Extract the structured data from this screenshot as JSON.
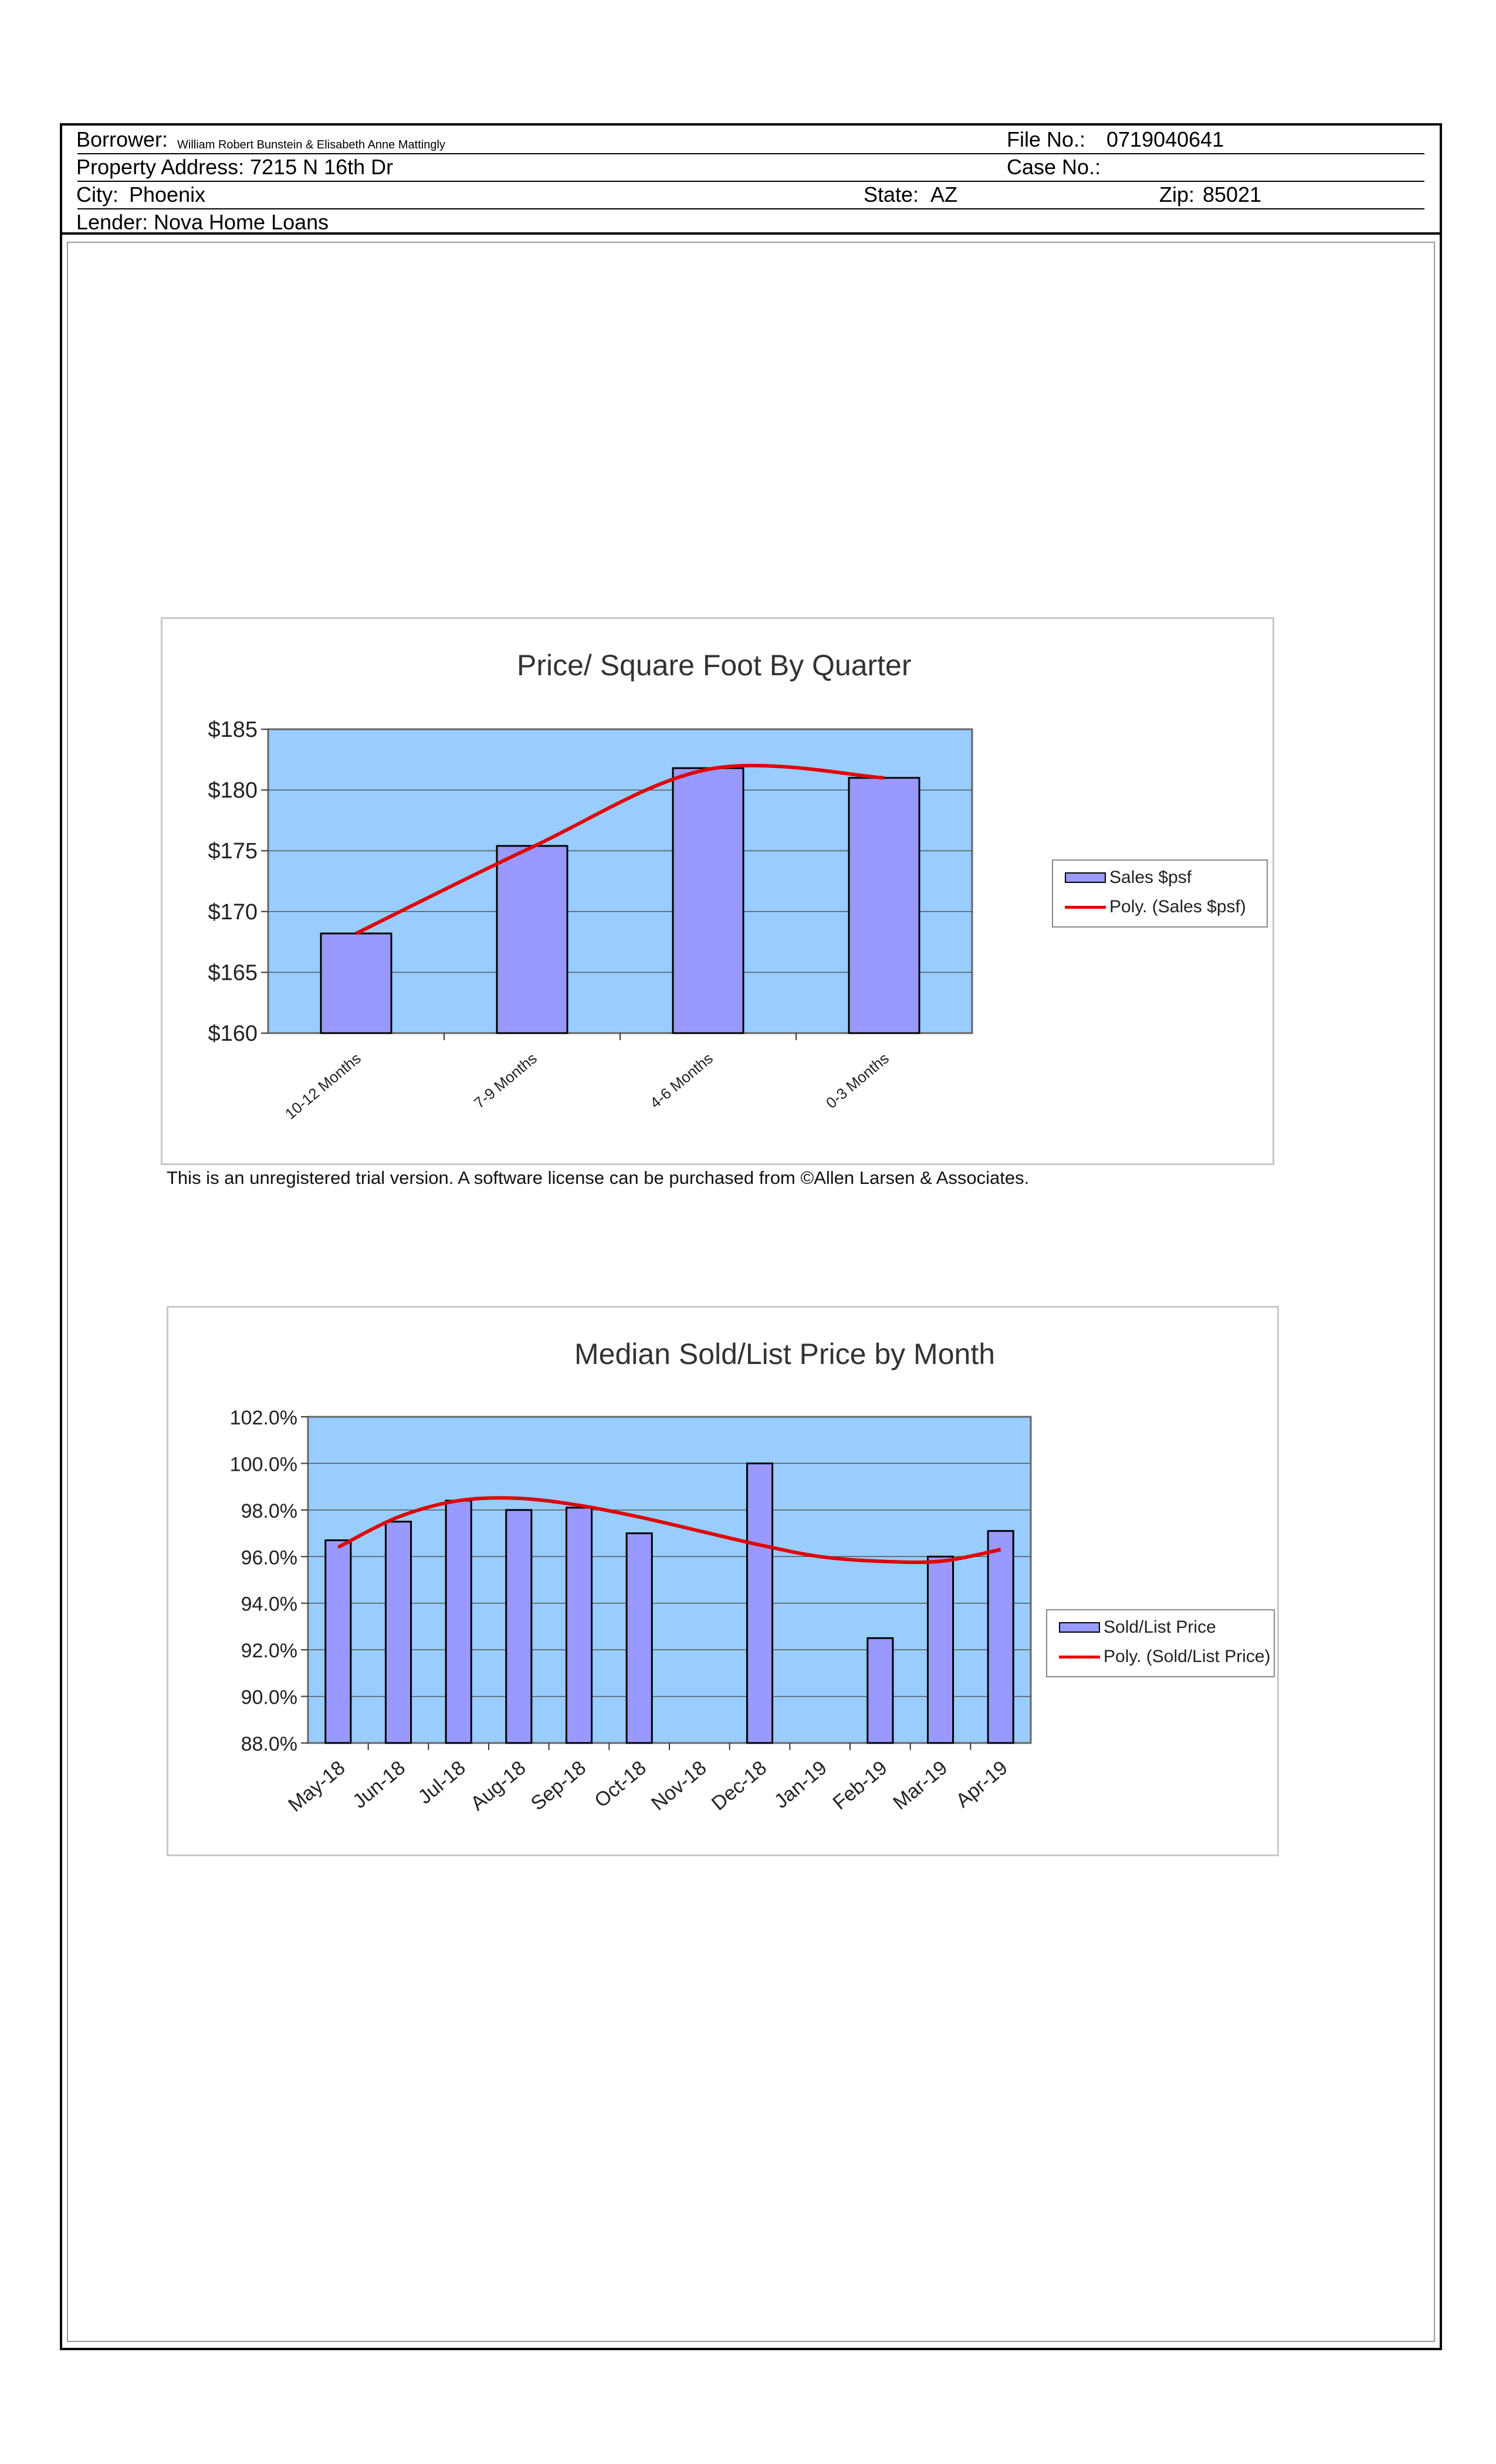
{
  "header": {
    "borrower_label": "Borrower:",
    "borrower_value": "William Robert Bunstein & Elisabeth Anne Mattingly",
    "file_no_label": "File No.:",
    "file_no_value": "0719040641",
    "property_label": "Property Address:",
    "property_value": "7215 N 16th Dr",
    "case_no_label": "Case No.:",
    "case_no_value": "",
    "city_label": "City:",
    "city_value": "Phoenix",
    "state_label": "State:",
    "state_value": "AZ",
    "zip_label": "Zip:",
    "zip_value": "85021",
    "lender_label": "Lender:",
    "lender_value": "Nova Home Loans"
  },
  "footnote": "This is an unregistered trial version. A software license can be purchased from ©Allen Larsen & Associates.",
  "chart_data": [
    {
      "type": "bar",
      "title": "Price/ Square Foot By Quarter",
      "categories": [
        "10-12 Months",
        "7-9 Months",
        "4-6 Months",
        "0-3 Months"
      ],
      "series": [
        {
          "name": "Sales $psf",
          "values": [
            168.2,
            175.4,
            181.8,
            181.0
          ]
        },
        {
          "name": "Poly. (Sales $psf)",
          "type": "line",
          "values": [
            168.2,
            175.3,
            181.7,
            181.0
          ]
        }
      ],
      "yticks": [
        "$185",
        "$180",
        "$175",
        "$170",
        "$165",
        "$160"
      ],
      "ylim": [
        160,
        185
      ],
      "grid": true,
      "legend": "right",
      "plot_bg": "#99ccff",
      "bar_color": "#9999ff",
      "trend_color": "#e00000"
    },
    {
      "type": "bar",
      "title": "Median Sold/List Price by Month",
      "categories": [
        "May-18",
        "Jun-18",
        "Jul-18",
        "Aug-18",
        "Sep-18",
        "Oct-18",
        "Nov-18",
        "Dec-18",
        "Jan-19",
        "Feb-19",
        "Mar-19",
        "Apr-19"
      ],
      "series": [
        {
          "name": "Sold/List Price",
          "values": [
            96.7,
            97.5,
            98.4,
            98.0,
            98.1,
            97.0,
            null,
            100.0,
            null,
            92.5,
            96.0,
            97.1
          ]
        },
        {
          "name": "Poly. (Sold/List Price)",
          "type": "line",
          "values": [
            96.4,
            97.7,
            98.4,
            98.5,
            98.2,
            97.7,
            97.1,
            96.5,
            96.0,
            95.8,
            95.8,
            96.3
          ]
        }
      ],
      "yticks": [
        "102.0%",
        "100.0%",
        "98.0%",
        "96.0%",
        "94.0%",
        "92.0%",
        "90.0%",
        "88.0%"
      ],
      "ylim": [
        88,
        102
      ],
      "grid": true,
      "legend": "right",
      "plot_bg": "#99ccff",
      "bar_color": "#9999ff",
      "trend_color": "#e00000"
    }
  ]
}
